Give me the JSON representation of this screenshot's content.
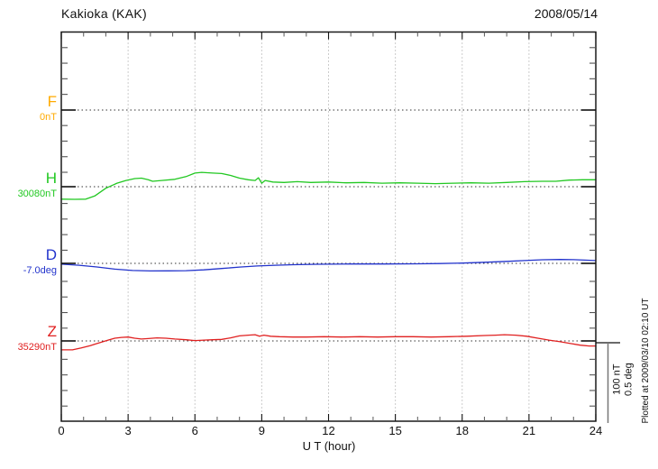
{
  "header": {
    "title": "Kakioka (KAK)",
    "date": "2008/05/14"
  },
  "footer": "Plotted at 2009/03/10 02:10 UT",
  "chart_data": {
    "type": "line",
    "title": "Kakioka (KAK)",
    "subtitle": "2008/05/14",
    "xlabel": "U T (hour)",
    "x_range": [
      0,
      24
    ],
    "x_ticks": [
      "0",
      "3",
      "6",
      "9",
      "12",
      "15",
      "18",
      "21",
      "24"
    ],
    "x_tick_values": [
      0,
      3,
      6,
      9,
      12,
      15,
      18,
      21,
      24
    ],
    "x_minor_step_hours": 1,
    "grid": "dotted vertical at every 3 hours, dotted horizontal baseline per trace",
    "y_minor_tick_nT": 20,
    "scale_bar": {
      "line1": "100 nT",
      "line2": "0.5 deg",
      "span_nT": 100,
      "span_deg": 0.5
    },
    "colors": {
      "F": "#FFAA00",
      "H": "#22C822",
      "D": "#2233CC",
      "Z": "#E02020",
      "frame": "#1a1a1a",
      "grid": "#999999",
      "baseline": "#333333",
      "scalebar": "#777777"
    },
    "series": [
      {
        "name": "F",
        "unit": "nT",
        "baseline_label": "0nT",
        "baseline_value": 0,
        "color": "#FFAA00",
        "points": []
      },
      {
        "name": "H",
        "unit": "nT",
        "baseline_label": "30080nT",
        "baseline_value": 30080,
        "color": "#22C822",
        "points": [
          [
            0,
            -16
          ],
          [
            0.6,
            -16.3
          ],
          [
            1.1,
            -16
          ],
          [
            1.5,
            -12
          ],
          [
            2.0,
            -2
          ],
          [
            2.5,
            4.5
          ],
          [
            2.9,
            8
          ],
          [
            3.3,
            10.5
          ],
          [
            3.6,
            11
          ],
          [
            3.9,
            9
          ],
          [
            4.1,
            7
          ],
          [
            4.5,
            8
          ],
          [
            5.1,
            9.5
          ],
          [
            5.6,
            13
          ],
          [
            6.0,
            17.5
          ],
          [
            6.3,
            18.5
          ],
          [
            6.8,
            17.5
          ],
          [
            7.2,
            17
          ],
          [
            7.6,
            14.5
          ],
          [
            8.0,
            11
          ],
          [
            8.4,
            9
          ],
          [
            8.7,
            8
          ],
          [
            8.85,
            11.5
          ],
          [
            9.0,
            4.5
          ],
          [
            9.15,
            8
          ],
          [
            9.5,
            6
          ],
          [
            10,
            5.5
          ],
          [
            10.6,
            6.5
          ],
          [
            11.2,
            5.5
          ],
          [
            12,
            6
          ],
          [
            12.8,
            5
          ],
          [
            13.6,
            5.5
          ],
          [
            14.4,
            4.5
          ],
          [
            15.2,
            5
          ],
          [
            16,
            4.5
          ],
          [
            16.8,
            4
          ],
          [
            17.6,
            4.5
          ],
          [
            18.4,
            5
          ],
          [
            19.2,
            4.5
          ],
          [
            20,
            5.5
          ],
          [
            20.8,
            6.5
          ],
          [
            21.6,
            7
          ],
          [
            22.2,
            7
          ],
          [
            22.8,
            8.5
          ],
          [
            23.4,
            9
          ],
          [
            24,
            9
          ]
        ]
      },
      {
        "name": "D",
        "unit": "deg",
        "baseline_label": "-7.0deg",
        "baseline_value": -7.0,
        "color": "#2233CC",
        "points": [
          [
            0,
            -0.005
          ],
          [
            0.8,
            -0.012
          ],
          [
            1.6,
            -0.023
          ],
          [
            2.4,
            -0.037
          ],
          [
            3.2,
            -0.046
          ],
          [
            4.0,
            -0.049
          ],
          [
            4.8,
            -0.048
          ],
          [
            5.6,
            -0.047
          ],
          [
            6.4,
            -0.042
          ],
          [
            7.2,
            -0.033
          ],
          [
            8.0,
            -0.024
          ],
          [
            8.8,
            -0.017
          ],
          [
            9.6,
            -0.012
          ],
          [
            10.4,
            -0.009
          ],
          [
            11.5,
            -0.006
          ],
          [
            13,
            -0.004
          ],
          [
            14.5,
            -0.004
          ],
          [
            16,
            -0.003
          ],
          [
            17,
            -0.001
          ],
          [
            18,
            0.002
          ],
          [
            19,
            0.007
          ],
          [
            20,
            0.013
          ],
          [
            20.8,
            0.018
          ],
          [
            21.6,
            0.023
          ],
          [
            22.4,
            0.025
          ],
          [
            23,
            0.024
          ],
          [
            23.5,
            0.021
          ],
          [
            24,
            0.018
          ]
        ]
      },
      {
        "name": "Z",
        "unit": "nT",
        "baseline_label": "35290nT",
        "baseline_value": 35290,
        "color": "#E02020",
        "points": [
          [
            0,
            -11.5
          ],
          [
            0.5,
            -11.5
          ],
          [
            0.9,
            -9
          ],
          [
            1.3,
            -6
          ],
          [
            1.7,
            -2.5
          ],
          [
            2.1,
            1
          ],
          [
            2.4,
            3.5
          ],
          [
            2.7,
            4.5
          ],
          [
            3.0,
            5
          ],
          [
            3.3,
            3.5
          ],
          [
            3.6,
            2.5
          ],
          [
            3.9,
            3
          ],
          [
            4.3,
            4
          ],
          [
            4.7,
            3.5
          ],
          [
            5.1,
            2.5
          ],
          [
            5.6,
            1.5
          ],
          [
            6.0,
            0.5
          ],
          [
            6.4,
            1
          ],
          [
            6.8,
            1.5
          ],
          [
            7.2,
            2
          ],
          [
            7.6,
            4
          ],
          [
            8.0,
            6.5
          ],
          [
            8.4,
            7.5
          ],
          [
            8.7,
            8
          ],
          [
            8.9,
            6
          ],
          [
            9.1,
            7.5
          ],
          [
            9.4,
            6
          ],
          [
            9.8,
            5.5
          ],
          [
            10.4,
            5
          ],
          [
            11,
            5
          ],
          [
            11.8,
            5.5
          ],
          [
            12.6,
            5
          ],
          [
            13.4,
            5.5
          ],
          [
            14.2,
            5
          ],
          [
            15,
            5.5
          ],
          [
            15.8,
            5.5
          ],
          [
            16.6,
            5
          ],
          [
            17.4,
            5.5
          ],
          [
            18.2,
            6
          ],
          [
            19,
            7
          ],
          [
            19.5,
            7.5
          ],
          [
            19.9,
            8
          ],
          [
            20.4,
            7.5
          ],
          [
            20.9,
            6
          ],
          [
            21.4,
            3.5
          ],
          [
            21.9,
            1
          ],
          [
            22.4,
            -1
          ],
          [
            22.9,
            -3.5
          ],
          [
            23.3,
            -5.5
          ],
          [
            23.7,
            -6.5
          ],
          [
            24,
            -6.5
          ]
        ]
      }
    ]
  }
}
